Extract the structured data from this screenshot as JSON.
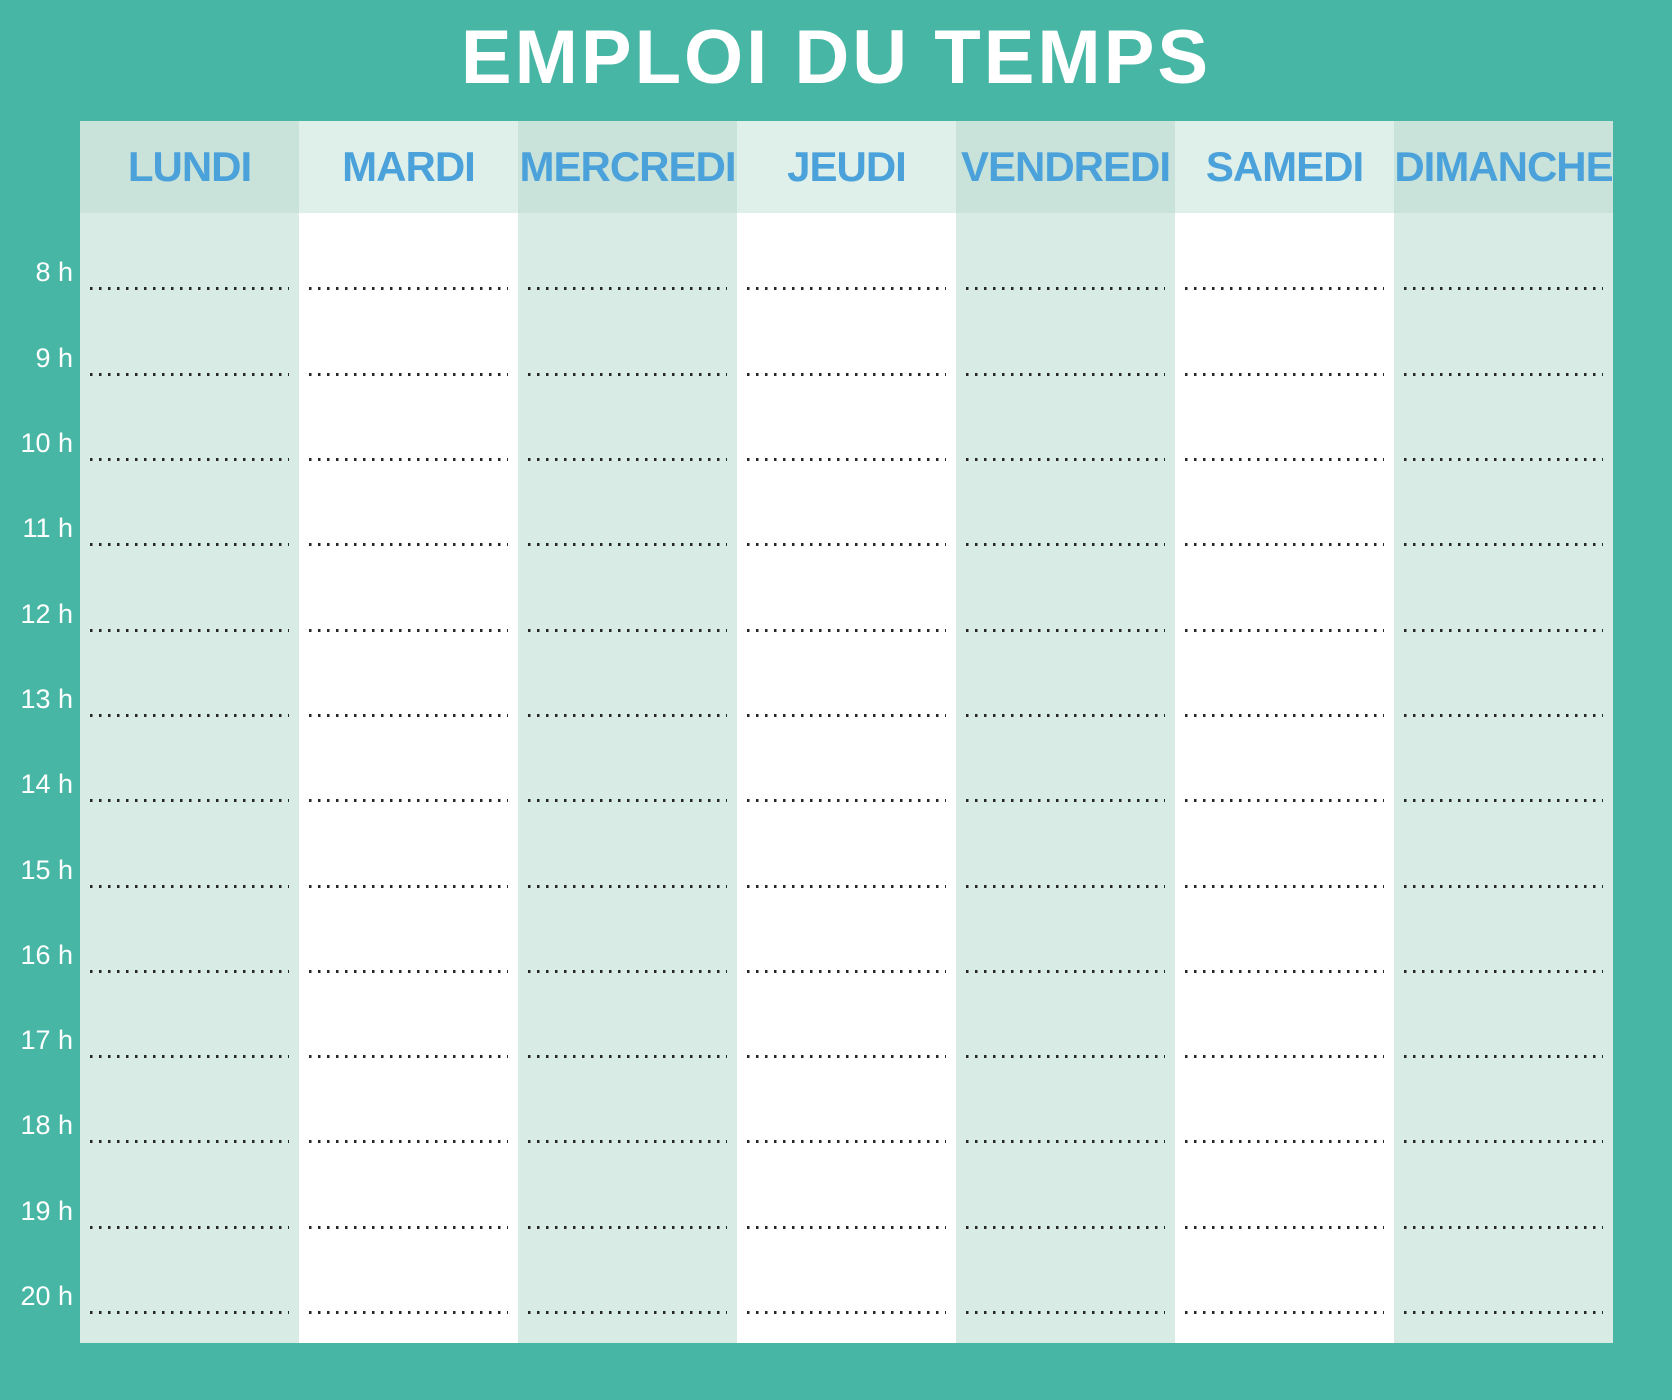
{
  "title": "EMPLOI DU TEMPS",
  "schedule": {
    "days": [
      "LUNDI",
      "MARDI",
      "MERCREDI",
      "JEUDI",
      "VENDREDI",
      "SAMEDI",
      "DIMANCHE"
    ],
    "hours": [
      "8 h",
      "9 h",
      "10 h",
      "11 h",
      "12 h",
      "13 h",
      "14 h",
      "15 h",
      "16 h",
      "17 h",
      "18 h",
      "19 h",
      "20 h"
    ]
  },
  "colors": {
    "background_teal": "#48b6a4",
    "mint_column": "#d8ece5",
    "white_column": "#ffffff",
    "mint_header_dark": "#c9e3da",
    "mint_header_light": "#def0e9",
    "day_text_blue": "#4ba1d9",
    "hour_text_white": "#ffffff",
    "title_text_white": "#ffffff",
    "dotted_line": "#262626"
  }
}
